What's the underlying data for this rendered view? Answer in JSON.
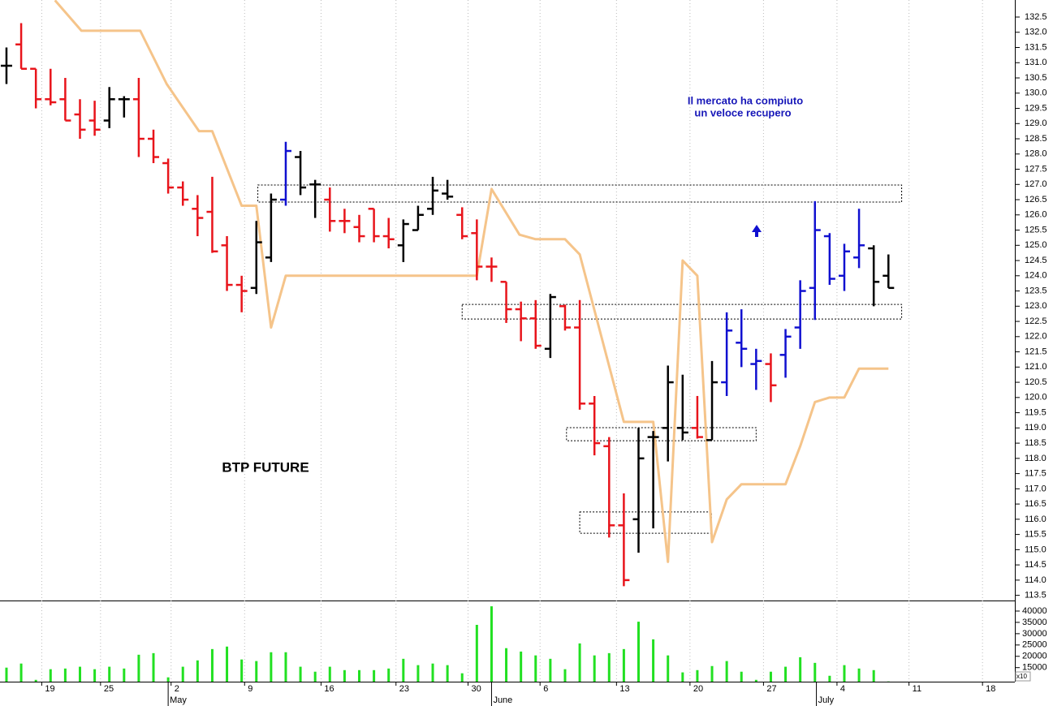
{
  "chart_data": [
    {
      "type": "ohlc",
      "title": "BTP FUTURE",
      "annotations": [
        "Il mercato ha compiuto",
        "un veloce recupero"
      ],
      "x": [
        0,
        1,
        2,
        3,
        4,
        5,
        6,
        7,
        8,
        9,
        10,
        11,
        12,
        13,
        14,
        15,
        16,
        17,
        18,
        19,
        20,
        21,
        22,
        23,
        24,
        25,
        26,
        27,
        28,
        29,
        30,
        31,
        32,
        33,
        34,
        35,
        36,
        37,
        38,
        39,
        40,
        41,
        42,
        43,
        44,
        45,
        46,
        47,
        48,
        49,
        50,
        51,
        52,
        53,
        54,
        55,
        56,
        57,
        58,
        59,
        60
      ],
      "open": [
        130.9,
        131.6,
        130.8,
        129.8,
        129.8,
        129.3,
        129.1,
        129.1,
        129.8,
        129.8,
        128.5,
        127.7,
        126.9,
        126.2,
        126.1,
        125.0,
        123.7,
        123.6,
        124.6,
        126.5,
        127.9,
        127.0,
        126.5,
        125.8,
        125.6,
        126.2,
        125.3,
        125.0,
        125.5,
        126.2,
        126.7,
        126.0,
        125.4,
        124.3,
        123.8,
        122.9,
        122.6,
        121.6,
        123.0,
        122.3,
        119.8,
        118.4,
        115.8,
        116.0,
        118.7,
        119.0,
        119.0,
        119.0,
        118.6,
        120.5,
        121.8,
        121.1,
        121.1,
        121.4,
        122.3,
        123.6,
        125.3,
        124.0,
        124.6,
        124.9,
        124.0
      ],
      "high": [
        131.5,
        132.3,
        130.8,
        130.8,
        130.5,
        129.8,
        129.75,
        130.2,
        129.9,
        130.5,
        128.8,
        127.85,
        127.1,
        126.65,
        127.25,
        125.3,
        124.0,
        125.8,
        126.7,
        128.4,
        128.1,
        127.15,
        126.9,
        126.2,
        126.0,
        126.2,
        125.9,
        125.85,
        126.3,
        127.25,
        127.15,
        126.25,
        125.85,
        124.6,
        123.8,
        123.15,
        123.2,
        123.4,
        123.05,
        123.2,
        120.05,
        118.7,
        116.85,
        119.0,
        118.9,
        121.05,
        120.75,
        120.05,
        121.2,
        122.8,
        122.9,
        121.6,
        121.45,
        122.25,
        123.85,
        126.45,
        125.4,
        125.05,
        126.2,
        125.0,
        124.7
      ],
      "low": [
        130.3,
        130.8,
        129.5,
        129.6,
        129.1,
        128.5,
        128.6,
        128.85,
        129.2,
        127.9,
        127.7,
        126.7,
        126.3,
        125.3,
        124.75,
        123.5,
        122.8,
        123.4,
        124.45,
        126.3,
        126.65,
        125.9,
        125.45,
        125.4,
        125.1,
        125.1,
        124.9,
        124.45,
        125.5,
        126.0,
        126.5,
        125.2,
        123.85,
        123.8,
        122.45,
        121.85,
        121.6,
        121.3,
        122.2,
        119.6,
        118.1,
        115.4,
        113.8,
        114.9,
        115.7,
        117.9,
        118.6,
        118.65,
        118.6,
        120.05,
        121.0,
        120.25,
        119.85,
        120.65,
        121.6,
        122.55,
        123.7,
        123.5,
        124.25,
        123.0,
        123.6
      ],
      "close": [
        130.9,
        130.8,
        129.8,
        129.7,
        129.1,
        128.8,
        128.8,
        129.8,
        129.8,
        128.5,
        127.9,
        126.9,
        126.5,
        125.9,
        124.8,
        123.7,
        123.5,
        125.1,
        126.5,
        128.1,
        126.9,
        127.0,
        125.8,
        125.8,
        125.3,
        125.3,
        125.2,
        125.7,
        126.0,
        126.8,
        126.6,
        125.3,
        124.3,
        124.3,
        122.9,
        122.6,
        121.7,
        123.3,
        122.3,
        119.8,
        118.5,
        115.8,
        114.0,
        118.0,
        118.7,
        120.5,
        118.85,
        118.7,
        120.5,
        122.2,
        121.6,
        121.2,
        120.4,
        122.0,
        123.5,
        125.5,
        123.9,
        124.8,
        125.0,
        123.8,
        123.6
      ],
      "colors": [
        "#000000",
        "#e8141b",
        "#e8141b",
        "#e8141b",
        "#e8141b",
        "#e8141b",
        "#e8141b",
        "#000000",
        "#000000",
        "#e8141b",
        "#e8141b",
        "#e8141b",
        "#e8141b",
        "#e8141b",
        "#e8141b",
        "#e8141b",
        "#e8141b",
        "#000000",
        "#000000",
        "#1010d0",
        "#000000",
        "#000000",
        "#e8141b",
        "#e8141b",
        "#e8141b",
        "#e8141b",
        "#e8141b",
        "#000000",
        "#000000",
        "#000000",
        "#000000",
        "#e8141b",
        "#e8141b",
        "#e8141b",
        "#e8141b",
        "#e8141b",
        "#e8141b",
        "#000000",
        "#e8141b",
        "#e8141b",
        "#e8141b",
        "#e8141b",
        "#e8141b",
        "#000000",
        "#000000",
        "#000000",
        "#000000",
        "#e8141b",
        "#000000",
        "#1010d0",
        "#1010d0",
        "#1010d0",
        "#e8141b",
        "#1010d0",
        "#1010d0",
        "#1010d0",
        "#1010d0",
        "#1010d0",
        "#1010d0",
        "#000000",
        "#000000"
      ],
      "line": {
        "color": "#f5c48a",
        "x": [
          3.3,
          5.1,
          9.1,
          10.9,
          13.1,
          14,
          16,
          17,
          18,
          19,
          20,
          32,
          33,
          34.9,
          36,
          38,
          39,
          42,
          44,
          45,
          46,
          47,
          48,
          49,
          50,
          53,
          54,
          55,
          56,
          57,
          58,
          60
        ],
        "values": [
          133.05,
          132.05,
          132.05,
          130.3,
          128.75,
          128.75,
          126.3,
          126.3,
          122.3,
          124.0,
          124.0,
          124.0,
          126.85,
          125.35,
          125.2,
          125.2,
          124.7,
          119.2,
          119.2,
          114.6,
          124.5,
          124.0,
          115.25,
          116.65,
          117.15,
          117.15,
          118.4,
          119.85,
          120.0,
          120.0,
          120.95,
          120.95
        ]
      },
      "zones": [
        {
          "x": [
            17.1,
            60.9
          ],
          "y": [
            126.42,
            126.98
          ]
        },
        {
          "x": [
            31.0,
            60.9
          ],
          "y": [
            122.58,
            123.06
          ]
        },
        {
          "x": [
            38.1,
            51.0
          ],
          "y": [
            118.58,
            119.01
          ]
        },
        {
          "x": [
            39.0,
            47.96
          ],
          "y": [
            115.54,
            116.24
          ]
        }
      ],
      "xlim": [
        -0.44,
        68.6
      ],
      "xticks": [
        {
          "value": 2.4,
          "label": "19"
        },
        {
          "value": 6.4,
          "label": "25"
        },
        {
          "value": 11.2,
          "label": "2"
        },
        {
          "value": 16.2,
          "label": "9"
        },
        {
          "value": 21.4,
          "label": "16"
        },
        {
          "value": 26.5,
          "label": "23"
        },
        {
          "value": 31.4,
          "label": "30"
        },
        {
          "value": 36.3,
          "label": "6"
        },
        {
          "value": 41.5,
          "label": "13"
        },
        {
          "value": 46.5,
          "label": "20"
        },
        {
          "value": 51.5,
          "label": "27"
        },
        {
          "value": 56.5,
          "label": "4"
        },
        {
          "value": 61.4,
          "label": "11"
        },
        {
          "value": 66.4,
          "label": "18"
        }
      ],
      "month_ticks": [
        {
          "value": 11.0,
          "label": "May"
        },
        {
          "value": 33.0,
          "label": "June"
        },
        {
          "value": 55.1,
          "label": "July"
        }
      ],
      "ylim": [
        113.33,
        133.06
      ],
      "yticks": [
        113.5,
        {
          "value": 114,
          "label": "114.0"
        },
        114.5,
        {
          "value": 115,
          "label": "115.0"
        },
        115.5,
        {
          "value": 116,
          "label": "116.0"
        },
        116.5,
        {
          "value": 117,
          "label": "117.0"
        },
        117.5,
        {
          "value": 118,
          "label": "118.0"
        },
        118.5,
        {
          "value": 119,
          "label": "119.0"
        },
        119.5,
        {
          "value": 120,
          "label": "120.0"
        },
        120.5,
        {
          "value": 121,
          "label": "121.0"
        },
        121.5,
        {
          "value": 122,
          "label": "122.0"
        },
        122.5,
        {
          "value": 123,
          "label": "123.0"
        },
        123.5,
        {
          "value": 124,
          "label": "124.0"
        },
        124.5,
        {
          "value": 125,
          "label": "125.0"
        },
        125.5,
        {
          "value": 126,
          "label": "126.0"
        },
        126.5,
        {
          "value": 127,
          "label": "127.0"
        },
        127.5,
        {
          "value": 128,
          "label": "128.0"
        },
        128.5,
        {
          "value": 129,
          "label": "129.0"
        },
        129.5,
        {
          "value": 130,
          "label": "130.0"
        },
        130.5,
        {
          "value": 131,
          "label": "131.0"
        },
        131.5,
        {
          "value": 132,
          "label": "132.0"
        },
        132.5
      ]
    },
    {
      "type": "bar",
      "unit_label": "x10",
      "color": "#22e022",
      "x": [
        0,
        1,
        2,
        3,
        4,
        5,
        6,
        7,
        8,
        9,
        10,
        11,
        12,
        13,
        14,
        15,
        16,
        17,
        18,
        19,
        20,
        21,
        22,
        23,
        24,
        25,
        26,
        27,
        28,
        29,
        30,
        31,
        32,
        33,
        34,
        35,
        36,
        37,
        38,
        39,
        40,
        41,
        42,
        43,
        44,
        45,
        46,
        47,
        48,
        49,
        50,
        51,
        52,
        53,
        54,
        55,
        56,
        57,
        58,
        59,
        60
      ],
      "values": [
        15000,
        16800,
        9600,
        14300,
        14600,
        15400,
        14300,
        15400,
        14600,
        20700,
        21400,
        10700,
        15400,
        18200,
        23200,
        24300,
        18600,
        17900,
        21800,
        21800,
        15400,
        13200,
        15400,
        13900,
        13900,
        13900,
        14600,
        18900,
        16100,
        16800,
        16100,
        12500,
        33900,
        42100,
        23600,
        22100,
        20400,
        18900,
        14300,
        25700,
        20400,
        21400,
        23200,
        35300,
        27500,
        20400,
        12900,
        13900,
        15700,
        17900,
        13200,
        9600,
        13200,
        15400,
        19600,
        17100,
        11400,
        16100,
        14600,
        13900,
        8900
      ],
      "ylim": [
        8800,
        44300
      ],
      "yticks": [
        15000,
        20000,
        25000,
        30000,
        35000,
        40000
      ]
    }
  ]
}
